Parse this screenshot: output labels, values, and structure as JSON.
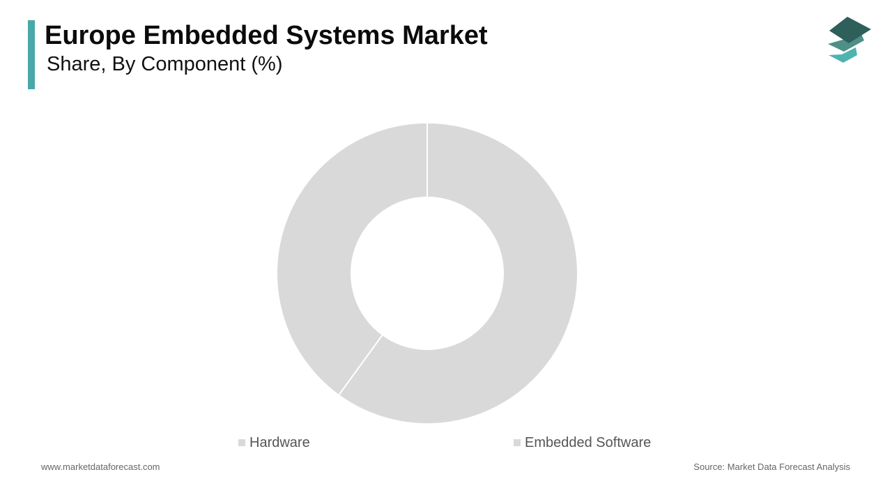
{
  "header": {
    "title": "Europe Embedded Systems Market",
    "subtitle": "Share, By Component (%)",
    "accent_color": "#4aa8a8"
  },
  "logo": {
    "icon": "stacked-layers-logo-icon",
    "colors": [
      "#2e5f5a",
      "#4e8f86",
      "#4fb3b0"
    ]
  },
  "chart_data": {
    "type": "pie",
    "variant": "donut",
    "title": "Europe Embedded Systems Market",
    "subtitle": "Share, By Component (%)",
    "categories": [
      "Hardware",
      "Embedded Software"
    ],
    "values": [
      60,
      40
    ],
    "colors": [
      "#d9d9d9",
      "#d9d9d9"
    ],
    "legend_position": "bottom",
    "data_labels": false
  },
  "legend": [
    {
      "label": "Hardware",
      "color": "#d9d9d9"
    },
    {
      "label": "Embedded Software",
      "color": "#d9d9d9"
    }
  ],
  "footer": {
    "website": "www.marketdataforecast.com",
    "source": "Source: Market Data Forecast Analysis"
  }
}
